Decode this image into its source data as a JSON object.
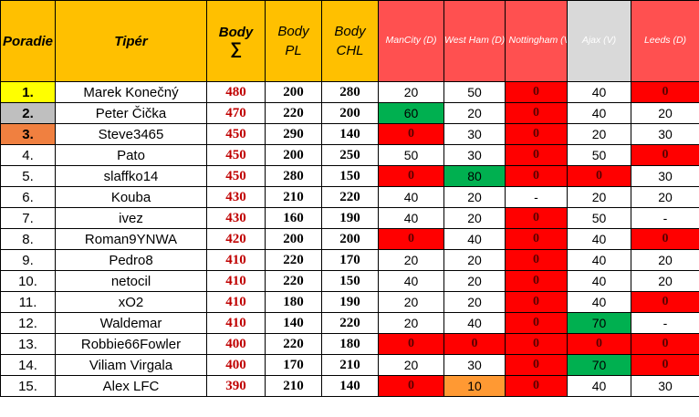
{
  "headers": {
    "rank": "Poradie",
    "tipper": "Tipér",
    "total": "Body",
    "total_symbol": "∑",
    "pl": "Body PL",
    "chl": "Body CHL",
    "matches": [
      "ManCity (D)",
      "West Ham (D)",
      "Nottingham (V)",
      "Ajax (V)",
      "Leeds (D)"
    ]
  },
  "colors": {
    "header_gold": "#ffc000",
    "header_red": "#ff5050",
    "header_grey": "#d9d9d9",
    "cell_red": "#ff0000",
    "cell_green": "#00b050",
    "cell_orange": "#ff9933",
    "total_text": "#c00000",
    "rank1": "#ffff00",
    "rank2": "#bfbfbf",
    "rank3": "#f08040"
  },
  "rows": [
    {
      "rank": "1.",
      "name": "Marek Konečný",
      "total": "480",
      "pl": "200",
      "chl": "280",
      "m": [
        {
          "v": "20",
          "s": ""
        },
        {
          "v": "50",
          "s": ""
        },
        {
          "v": "0",
          "s": "red"
        },
        {
          "v": "40",
          "s": ""
        },
        {
          "v": "0",
          "s": "red"
        }
      ]
    },
    {
      "rank": "2.",
      "name": "Peter Čička",
      "total": "470",
      "pl": "220",
      "chl": "200",
      "m": [
        {
          "v": "60",
          "s": "green"
        },
        {
          "v": "20",
          "s": ""
        },
        {
          "v": "0",
          "s": "red"
        },
        {
          "v": "40",
          "s": ""
        },
        {
          "v": "20",
          "s": ""
        }
      ]
    },
    {
      "rank": "3.",
      "name": "Steve3465",
      "total": "450",
      "pl": "290",
      "chl": "140",
      "m": [
        {
          "v": "0",
          "s": "red"
        },
        {
          "v": "30",
          "s": ""
        },
        {
          "v": "0",
          "s": "red"
        },
        {
          "v": "20",
          "s": ""
        },
        {
          "v": "30",
          "s": ""
        }
      ]
    },
    {
      "rank": "4.",
      "name": "Pato",
      "total": "450",
      "pl": "200",
      "chl": "250",
      "m": [
        {
          "v": "50",
          "s": ""
        },
        {
          "v": "30",
          "s": ""
        },
        {
          "v": "0",
          "s": "red"
        },
        {
          "v": "50",
          "s": ""
        },
        {
          "v": "0",
          "s": "red"
        }
      ]
    },
    {
      "rank": "5.",
      "name": "slaffko14",
      "total": "450",
      "pl": "280",
      "chl": "150",
      "m": [
        {
          "v": "0",
          "s": "red"
        },
        {
          "v": "80",
          "s": "green"
        },
        {
          "v": "0",
          "s": "red"
        },
        {
          "v": "0",
          "s": "red"
        },
        {
          "v": "30",
          "s": ""
        }
      ]
    },
    {
      "rank": "6.",
      "name": "Kouba",
      "total": "430",
      "pl": "210",
      "chl": "220",
      "m": [
        {
          "v": "40",
          "s": ""
        },
        {
          "v": "20",
          "s": ""
        },
        {
          "v": "-",
          "s": ""
        },
        {
          "v": "20",
          "s": ""
        },
        {
          "v": "20",
          "s": ""
        }
      ]
    },
    {
      "rank": "7.",
      "name": "ivez",
      "total": "430",
      "pl": "160",
      "chl": "190",
      "m": [
        {
          "v": "40",
          "s": ""
        },
        {
          "v": "20",
          "s": ""
        },
        {
          "v": "0",
          "s": "red"
        },
        {
          "v": "50",
          "s": ""
        },
        {
          "v": "-",
          "s": ""
        }
      ]
    },
    {
      "rank": "8.",
      "name": "Roman9YNWA",
      "total": "420",
      "pl": "200",
      "chl": "200",
      "m": [
        {
          "v": "0",
          "s": "red"
        },
        {
          "v": "40",
          "s": ""
        },
        {
          "v": "0",
          "s": "red"
        },
        {
          "v": "40",
          "s": ""
        },
        {
          "v": "0",
          "s": "red"
        }
      ]
    },
    {
      "rank": "9.",
      "name": "Pedro8",
      "total": "410",
      "pl": "220",
      "chl": "170",
      "m": [
        {
          "v": "20",
          "s": ""
        },
        {
          "v": "20",
          "s": ""
        },
        {
          "v": "0",
          "s": "red"
        },
        {
          "v": "40",
          "s": ""
        },
        {
          "v": "20",
          "s": ""
        }
      ]
    },
    {
      "rank": "10.",
      "name": "netocil",
      "total": "410",
      "pl": "220",
      "chl": "150",
      "m": [
        {
          "v": "40",
          "s": ""
        },
        {
          "v": "20",
          "s": ""
        },
        {
          "v": "0",
          "s": "red"
        },
        {
          "v": "40",
          "s": ""
        },
        {
          "v": "20",
          "s": ""
        }
      ]
    },
    {
      "rank": "11.",
      "name": "xO2",
      "total": "410",
      "pl": "180",
      "chl": "190",
      "m": [
        {
          "v": "20",
          "s": ""
        },
        {
          "v": "20",
          "s": ""
        },
        {
          "v": "0",
          "s": "red"
        },
        {
          "v": "40",
          "s": ""
        },
        {
          "v": "0",
          "s": "red"
        }
      ]
    },
    {
      "rank": "12.",
      "name": "Waldemar",
      "total": "410",
      "pl": "140",
      "chl": "220",
      "m": [
        {
          "v": "20",
          "s": ""
        },
        {
          "v": "40",
          "s": ""
        },
        {
          "v": "0",
          "s": "red"
        },
        {
          "v": "70",
          "s": "green"
        },
        {
          "v": "-",
          "s": ""
        }
      ]
    },
    {
      "rank": "13.",
      "name": "Robbie66Fowler",
      "total": "400",
      "pl": "220",
      "chl": "180",
      "m": [
        {
          "v": "0",
          "s": "red"
        },
        {
          "v": "0",
          "s": "red"
        },
        {
          "v": "0",
          "s": "red"
        },
        {
          "v": "0",
          "s": "red"
        },
        {
          "v": "0",
          "s": "red"
        }
      ]
    },
    {
      "rank": "14.",
      "name": "Viliam Virgala",
      "total": "400",
      "pl": "170",
      "chl": "210",
      "m": [
        {
          "v": "20",
          "s": ""
        },
        {
          "v": "30",
          "s": ""
        },
        {
          "v": "0",
          "s": "red"
        },
        {
          "v": "70",
          "s": "green"
        },
        {
          "v": "0",
          "s": "red"
        }
      ]
    },
    {
      "rank": "15.",
      "name": "Alex LFC",
      "total": "390",
      "pl": "210",
      "chl": "140",
      "m": [
        {
          "v": "0",
          "s": "red"
        },
        {
          "v": "10",
          "s": "orange"
        },
        {
          "v": "0",
          "s": "red"
        },
        {
          "v": "40",
          "s": ""
        },
        {
          "v": "30",
          "s": ""
        }
      ]
    }
  ]
}
